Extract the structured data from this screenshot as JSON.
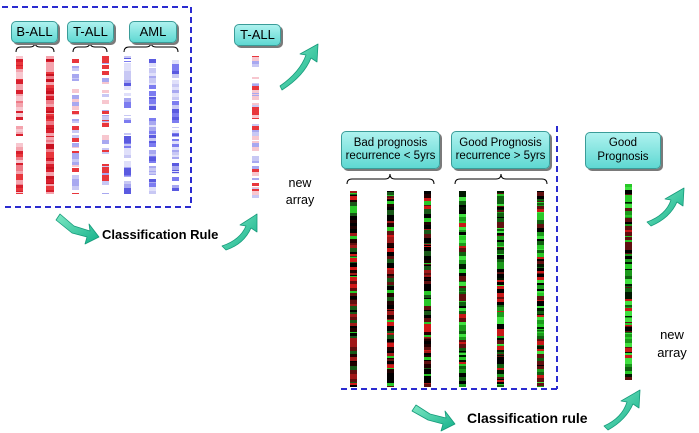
{
  "top": {
    "group_labels": [
      "B-ALL",
      "T-ALL",
      "AML"
    ],
    "unknown_label": "T-ALL",
    "new_array_line1": "new",
    "new_array_line2": "array",
    "rule_label": "Classification Rule",
    "colors": {
      "high": "#e8363c",
      "mid": "#f4a3ad",
      "low": "#7c7cf0",
      "pale_low": "#c8c8f4"
    }
  },
  "bottom": {
    "group_labels": [
      {
        "line1": "Bad prognosis",
        "line2": "recurrence < 5yrs"
      },
      {
        "line1": "Good Prognosis",
        "line2": "recurrence > 5yrs"
      }
    ],
    "unknown_label": {
      "line1": "Good",
      "line2": "Prognosis"
    },
    "new_array_line1": "new",
    "new_array_line2": "array",
    "rule_label": "Classification rule",
    "colors": {
      "red": "#d01818",
      "green": "#28c828",
      "black": "#000000"
    }
  },
  "colors": {
    "dashed_frame": "#2b2bd0",
    "arrow": "#26c7a0",
    "label_fill": "#6edcd6"
  }
}
